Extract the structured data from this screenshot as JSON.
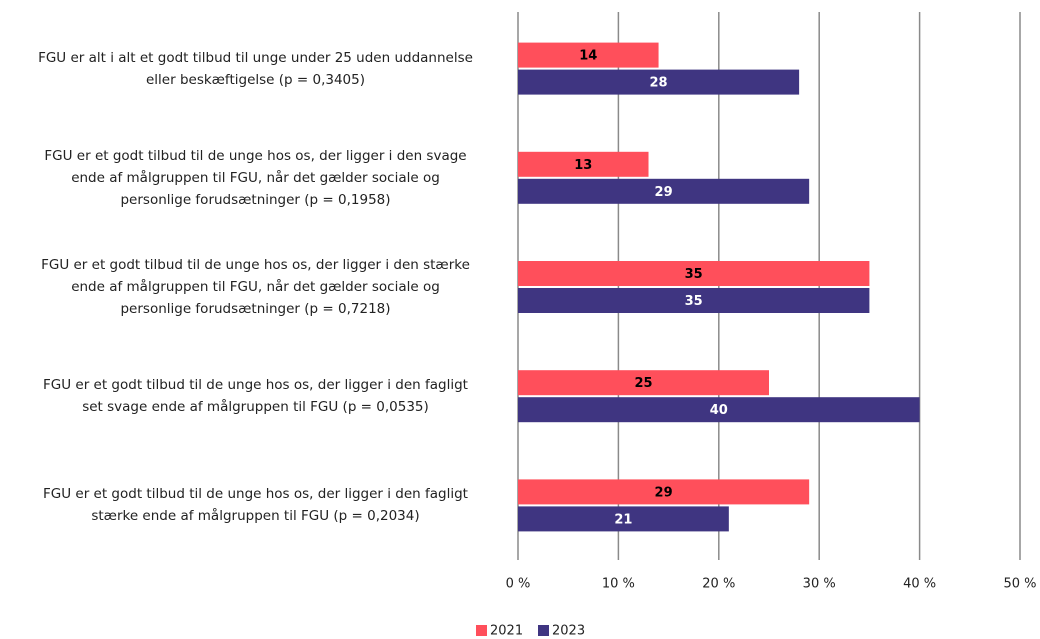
{
  "chart_data": {
    "type": "barh",
    "categories": [
      "FGU er alt i alt et godt tilbud til unge under 25 uden uddannelse\neller beskæftigelse (p = 0,3405)",
      "FGU er et godt tilbud til de unge hos os, der ligger i den svage\nende af målgruppen til FGU, når det gælder sociale og\npersonlige forudsætninger (p = 0,1958)",
      "FGU er et godt tilbud til de unge hos os, der ligger i den stærke\nende af målgruppen til FGU, når det gælder sociale og\npersonlige forudsætninger (p = 0,7218)",
      "FGU er et godt tilbud til de unge hos os, der ligger i den fagligt\nset svage ende af målgruppen til FGU (p = 0,0535)",
      "FGU er et godt tilbud til de unge hos os, der ligger i den fagligt\nstærke ende af målgruppen til FGU (p = 0,2034)"
    ],
    "series": [
      {
        "name": "2021",
        "color": "#ff4f5b",
        "label_color": "#000000",
        "values": [
          14,
          13,
          35,
          25,
          29
        ]
      },
      {
        "name": "2023",
        "color": "#3f3581",
        "label_color": "#ffffff",
        "values": [
          28,
          29,
          35,
          40,
          21
        ]
      }
    ],
    "xlim": [
      0,
      50
    ],
    "xticks": [
      {
        "value": 0,
        "label": "0 %"
      },
      {
        "value": 10,
        "label": "10 %"
      },
      {
        "value": 20,
        "label": "20 %"
      },
      {
        "value": 30,
        "label": "30 %"
      },
      {
        "value": 40,
        "label": "40 %"
      },
      {
        "value": 50,
        "label": "50 %"
      }
    ],
    "grid": true,
    "legend": "bottom"
  }
}
